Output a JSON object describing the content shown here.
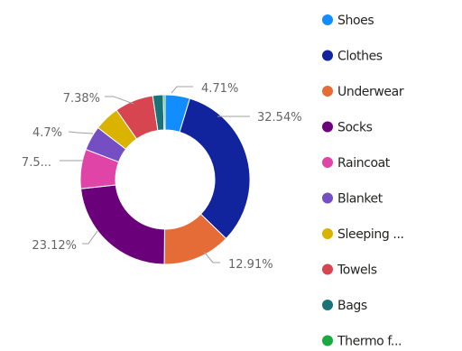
{
  "chart_data": {
    "type": "pie",
    "donut": true,
    "legend_position": "right",
    "series": [
      {
        "name": "Shoes",
        "value": 4.71,
        "label": "4.71%",
        "color": "#118DFF"
      },
      {
        "name": "Clothes",
        "value": 32.54,
        "label": "32.54%",
        "color": "#12239E"
      },
      {
        "name": "Underwear",
        "value": 12.91,
        "label": "12.91%",
        "color": "#E66C37"
      },
      {
        "name": "Socks",
        "value": 23.12,
        "label": "23.12%",
        "color": "#6B007B"
      },
      {
        "name": "Raincoat",
        "value": 7.5,
        "label": "7.5...",
        "color": "#E044A7"
      },
      {
        "name": "Blanket",
        "value": 4.7,
        "label": "4.7%",
        "color": "#744EC2"
      },
      {
        "name": "Sleeping ...",
        "value": 4.8,
        "label": "",
        "color": "#D9B300"
      },
      {
        "name": "Towels",
        "value": 7.38,
        "label": "7.38%",
        "color": "#D64550"
      },
      {
        "name": "Bags",
        "value": 2.0,
        "label": "",
        "color": "#197278"
      },
      {
        "name": "Thermo f...",
        "value": 0.34,
        "label": "",
        "color": "#1AAB40"
      }
    ]
  }
}
